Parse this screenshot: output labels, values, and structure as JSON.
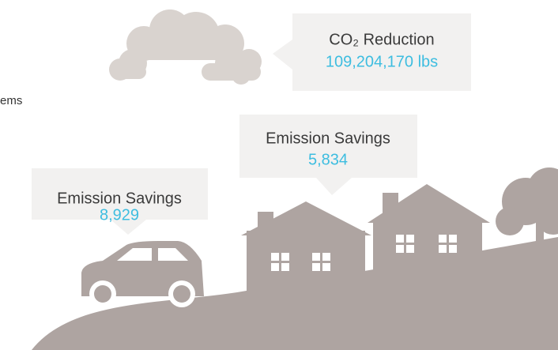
{
  "side_text": "ems",
  "callouts": [
    {
      "label": "CO₂ Reduction",
      "value": "109,204,170 lbs"
    },
    {
      "label": "Emission Savings",
      "value": "5,834"
    },
    {
      "label": "Emission Savings",
      "value": "8,929"
    }
  ]
}
